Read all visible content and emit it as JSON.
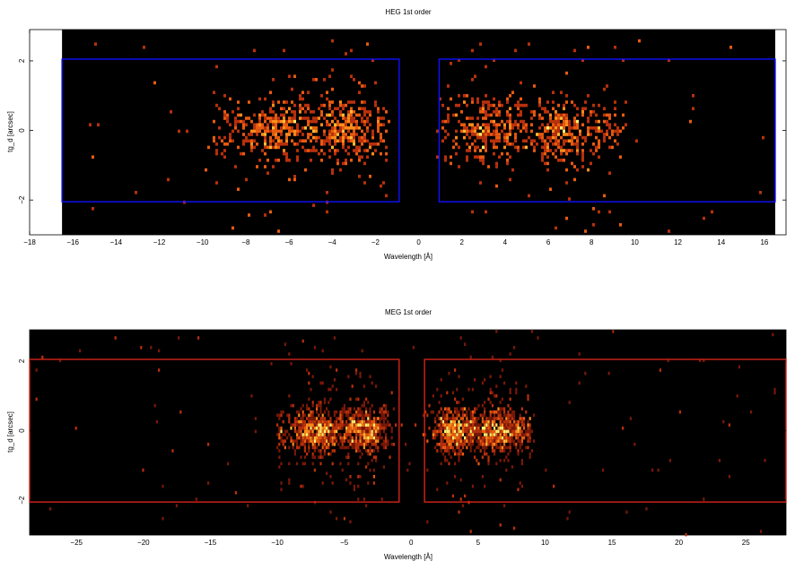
{
  "chart_data": [
    {
      "type": "heatmap",
      "title": "HEG 1st order",
      "xlabel": "Wavelength [Å]",
      "ylabel": "tg_d [arcsec]",
      "xlim": [
        -18,
        17
      ],
      "ylim": [
        -3.0,
        2.9
      ],
      "xticks": [
        -18,
        -16,
        -14,
        -12,
        -10,
        -8,
        -6,
        -4,
        -2,
        0,
        2,
        4,
        6,
        8,
        10,
        12,
        14,
        16
      ],
      "xtick_labels": [
        "−18",
        "−16",
        "−14",
        "−12",
        "−10",
        "−8",
        "−6",
        "−4",
        "−2",
        "0",
        "2",
        "4",
        "6",
        "8",
        "10",
        "12",
        "14",
        "16"
      ],
      "yticks": [
        -2,
        0,
        2
      ],
      "ytick_labels": [
        "−2",
        "0",
        "2"
      ],
      "data_extent_x": [
        -16.5,
        16.5
      ],
      "regions": [
        {
          "x": [
            -16.5,
            -0.9
          ],
          "y": [
            -2.05,
            2.05
          ]
        },
        {
          "x": [
            0.95,
            16.5
          ],
          "y": [
            -2.05,
            2.05
          ]
        }
      ],
      "clusters": [
        {
          "x_range": [
            -9.5,
            -1.5
          ],
          "peaks": [
            -6.6,
            -3.4
          ],
          "y_sigma": 0.45
        },
        {
          "x_range": [
            1.0,
            9.5
          ],
          "peaks": [
            3.2,
            6.7
          ],
          "y_sigma": 0.45
        }
      ],
      "colors": {
        "background": "#000000",
        "region": "#1010ff",
        "outside": "#ffffff"
      }
    },
    {
      "type": "heatmap",
      "title": "MEG 1st order",
      "xlabel": "Wavelength [Å]",
      "ylabel": "tg_d [arcsec]",
      "xlim": [
        -28.5,
        28
      ],
      "ylim": [
        -3.0,
        2.9
      ],
      "xticks": [
        -25,
        -20,
        -15,
        -10,
        -5,
        0,
        5,
        10,
        15,
        20,
        25
      ],
      "xtick_labels": [
        "−25",
        "−20",
        "−15",
        "−10",
        "−5",
        "0",
        "5",
        "10",
        "15",
        "20",
        "25"
      ],
      "yticks": [
        -2,
        0,
        2
      ],
      "ytick_labels": [
        "−2",
        "0",
        "2"
      ],
      "data_extent_x": [
        -28.5,
        28
      ],
      "regions": [
        {
          "x": [
            -28.5,
            -0.9
          ],
          "y": [
            -2.05,
            2.05
          ]
        },
        {
          "x": [
            1.0,
            28
          ],
          "y": [
            -2.05,
            2.05
          ]
        }
      ],
      "clusters": [
        {
          "x_range": [
            -10.0,
            -2.0
          ],
          "peaks": [
            -7.0,
            -3.4
          ],
          "y_sigma": 0.32
        },
        {
          "x_range": [
            2.0,
            9.0
          ],
          "peaks": [
            3.3,
            6.6
          ],
          "y_sigma": 0.32
        }
      ],
      "colors": {
        "background": "#000000",
        "region": "#d42418",
        "outside": "#ffffff"
      }
    }
  ]
}
